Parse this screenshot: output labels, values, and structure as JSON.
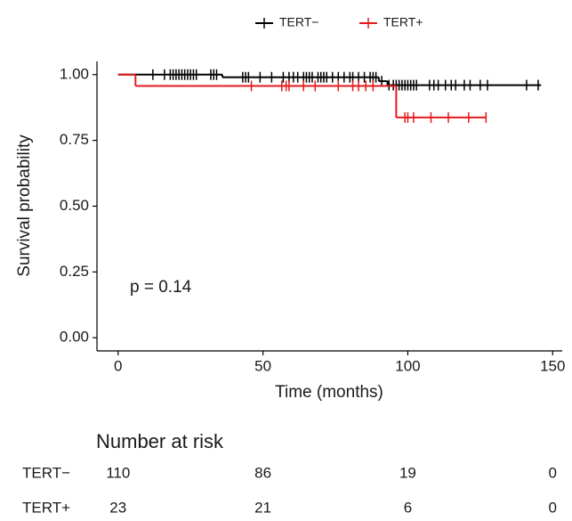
{
  "chart_data": {
    "type": "km",
    "x_label": "Time (months)",
    "y_label": "Survival probability",
    "annotation": "p = 0.14",
    "xlim": [
      -7.3,
      153.3
    ],
    "ylim": [
      -0.05,
      1.05
    ],
    "xticks": [
      0,
      50,
      100,
      150
    ],
    "yticks": [
      {
        "value": 0,
        "label": "0.00"
      },
      {
        "value": 0.25,
        "label": "0.25"
      },
      {
        "value": 0.5,
        "label": "0.50"
      },
      {
        "value": 0.75,
        "label": "0.75"
      },
      {
        "value": 1,
        "label": "1.00"
      }
    ],
    "series": [
      {
        "name": "TERT−",
        "color": "#000000",
        "x": [
          0,
          36,
          90,
          93,
          146
        ],
        "values": [
          1,
          0.99,
          0.975,
          0.96,
          0.96
        ],
        "censor_x": [
          12,
          16,
          18,
          19,
          20,
          21,
          22,
          23,
          24,
          25,
          26,
          27,
          32,
          33,
          34,
          43,
          44,
          45,
          49,
          53,
          57,
          59,
          60.5,
          62,
          64,
          65,
          66,
          67,
          69,
          70,
          71,
          72,
          74,
          76,
          78,
          80,
          81,
          83,
          85,
          87,
          88,
          89,
          91,
          93.5,
          95,
          96,
          97,
          98,
          99,
          100,
          101,
          102,
          103,
          107.5,
          109,
          110.5,
          113,
          115,
          116.5,
          119.5,
          121.5,
          125,
          127.5,
          141,
          145
        ],
        "censor_values": [
          1,
          1,
          1,
          1,
          1,
          1,
          1,
          1,
          1,
          1,
          1,
          1,
          1,
          1,
          1,
          0.99,
          0.99,
          0.99,
          0.99,
          0.99,
          0.99,
          0.99,
          0.99,
          0.99,
          0.99,
          0.99,
          0.99,
          0.99,
          0.99,
          0.99,
          0.99,
          0.99,
          0.99,
          0.99,
          0.99,
          0.99,
          0.99,
          0.99,
          0.99,
          0.99,
          0.99,
          0.99,
          0.975,
          0.96,
          0.96,
          0.96,
          0.96,
          0.96,
          0.96,
          0.96,
          0.96,
          0.96,
          0.96,
          0.96,
          0.96,
          0.96,
          0.96,
          0.96,
          0.96,
          0.96,
          0.96,
          0.96,
          0.96,
          0.96,
          0.96
        ]
      },
      {
        "name": "TERT+",
        "color": "#e41a1c",
        "x": [
          0,
          6,
          96,
          127
        ],
        "values": [
          1,
          0.957,
          0.837,
          0.837
        ],
        "censor_x": [
          46,
          56.5,
          58,
          59,
          64,
          68,
          76,
          81,
          83,
          85.5,
          88,
          99,
          100,
          102,
          108,
          114,
          121,
          127
        ],
        "censor_values": [
          0.957,
          0.957,
          0.957,
          0.957,
          0.957,
          0.957,
          0.957,
          0.957,
          0.957,
          0.957,
          0.957,
          0.837,
          0.837,
          0.837,
          0.837,
          0.837,
          0.837,
          0.837
        ]
      }
    ],
    "risk_table": {
      "title": "Number at risk",
      "times": [
        0,
        50,
        100,
        150
      ],
      "rows": [
        {
          "name": "TERT−",
          "color": "#000000",
          "values": [
            110,
            86,
            19,
            0
          ]
        },
        {
          "name": "TERT+",
          "color": "#e41a1c",
          "values": [
            23,
            21,
            6,
            0
          ]
        }
      ]
    }
  }
}
